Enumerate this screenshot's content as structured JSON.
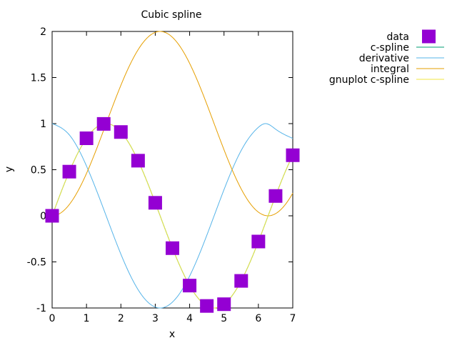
{
  "chart_data": {
    "type": "line",
    "title": "Cubic spline",
    "xlabel": "x",
    "ylabel": "y",
    "xlim": [
      0,
      7
    ],
    "ylim": [
      -1,
      2
    ],
    "xticks": [
      "0",
      "1",
      "2",
      "3",
      "4",
      "5",
      "6",
      "7"
    ],
    "yticks": [
      "-1",
      "-0.5",
      "0",
      "0.5",
      "1",
      "1.5",
      "2"
    ],
    "grid": false,
    "legend_position": "top-right-outside",
    "series": [
      {
        "name": "data",
        "kind": "points",
        "color": "#9400d3",
        "x": [
          0,
          0.5,
          1,
          1.5,
          2,
          2.5,
          3,
          3.5,
          4,
          4.5,
          5,
          5.5,
          6,
          6.5,
          7
        ],
        "y": [
          0,
          0.479,
          0.841,
          0.997,
          0.909,
          0.598,
          0.141,
          -0.351,
          -0.757,
          -0.978,
          -0.959,
          -0.706,
          -0.279,
          0.215,
          0.657
        ]
      },
      {
        "name": "c-spline",
        "kind": "line",
        "color": "#009e73",
        "function": "sin(x)",
        "x": [
          0,
          0.5,
          1,
          1.5,
          2,
          2.5,
          3,
          3.5,
          4,
          4.5,
          5,
          5.5,
          6,
          6.5,
          7
        ],
        "y": [
          0,
          0.479,
          0.841,
          0.997,
          0.909,
          0.598,
          0.141,
          -0.351,
          -0.757,
          -0.978,
          -0.959,
          -0.706,
          -0.279,
          0.215,
          0.657
        ]
      },
      {
        "name": "derivative",
        "kind": "line",
        "color": "#56b4e9",
        "x": [
          0,
          0.5,
          1,
          1.5,
          2,
          2.5,
          3,
          3.5,
          4,
          4.5,
          5,
          5.5,
          6,
          6.2,
          6.5,
          7
        ],
        "y": [
          1,
          0.878,
          0.54,
          0.071,
          -0.416,
          -0.801,
          -0.99,
          -0.936,
          -0.654,
          -0.211,
          0.284,
          0.709,
          0.96,
          1.0,
          0.94,
          0.84
        ]
      },
      {
        "name": "integral",
        "kind": "line",
        "color": "#e69f00",
        "function": "1-cos(x)",
        "x": [
          0,
          0.5,
          1,
          1.5,
          2,
          2.5,
          3,
          3.5,
          4,
          4.5,
          5,
          5.5,
          6,
          6.5,
          7
        ],
        "y": [
          0,
          0.122,
          0.46,
          0.929,
          1.416,
          1.801,
          1.99,
          1.936,
          1.654,
          1.211,
          0.716,
          0.291,
          0.04,
          0.023,
          0.246
        ]
      },
      {
        "name": "gnuplot c-spline",
        "kind": "line",
        "color": "#f0e442",
        "function": "sin(x)",
        "x": [
          0,
          0.5,
          1,
          1.5,
          2,
          2.5,
          3,
          3.5,
          4,
          4.5,
          5,
          5.5,
          6,
          6.5,
          7
        ],
        "y": [
          0,
          0.479,
          0.841,
          0.997,
          0.909,
          0.598,
          0.141,
          -0.351,
          -0.757,
          -0.978,
          -0.959,
          -0.706,
          -0.279,
          0.215,
          0.657
        ]
      }
    ]
  }
}
